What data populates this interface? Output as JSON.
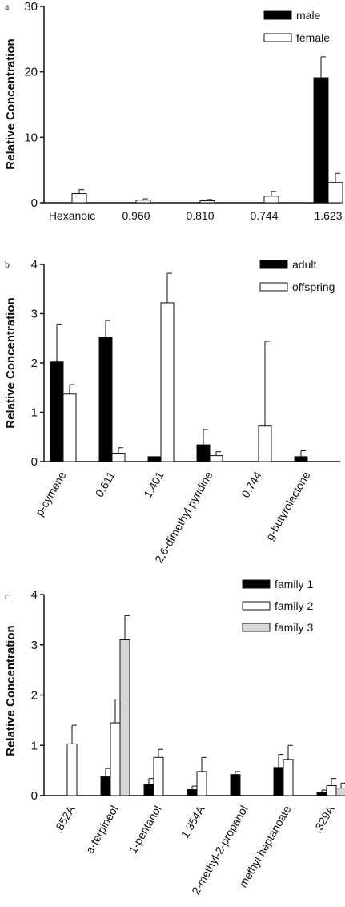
{
  "chart_data": [
    {
      "panel": "a",
      "type": "bar",
      "ylabel": "Relative Concentration",
      "ylim": [
        0,
        30
      ],
      "yticks": [
        0,
        10,
        20,
        30
      ],
      "categories": [
        "Hexanoic",
        "0.960",
        "0.810",
        "0.744",
        "1.623"
      ],
      "series": [
        {
          "name": "male",
          "color": "#000000",
          "values": [
            0,
            0,
            0,
            0,
            19.1
          ],
          "errors": [
            0,
            0,
            0,
            0,
            3.2
          ]
        },
        {
          "name": "female",
          "color": "#ffffff",
          "values": [
            1.4,
            0.4,
            0.3,
            1.0,
            3.1
          ],
          "errors": [
            0.6,
            0.2,
            0.2,
            0.7,
            1.4
          ]
        }
      ],
      "legend": "top-right"
    },
    {
      "panel": "b",
      "type": "bar",
      "ylabel": "Relative Concentration",
      "ylim": [
        0,
        4
      ],
      "yticks": [
        0,
        1,
        2,
        3,
        4
      ],
      "categories": [
        "p-cymene",
        "0.611",
        "1.401",
        "2,6-dimethyl pyridine",
        "0.744",
        "g-butyrolactone"
      ],
      "series": [
        {
          "name": "adult",
          "color": "#000000",
          "values": [
            2.02,
            2.52,
            0.1,
            0.34,
            0,
            0.1
          ],
          "errors": [
            0.77,
            0.34,
            0,
            0.31,
            0,
            0.12
          ]
        },
        {
          "name": "offspring",
          "color": "#ffffff",
          "values": [
            1.37,
            0.17,
            3.22,
            0.12,
            0.72,
            0
          ],
          "errors": [
            0.19,
            0.11,
            0.6,
            0.08,
            1.72,
            0
          ]
        }
      ],
      "legend": "top-right"
    },
    {
      "panel": "c",
      "type": "bar",
      "ylabel": "Relative Concentration",
      "ylim": [
        0,
        4
      ],
      "yticks": [
        0,
        1,
        2,
        3,
        4
      ],
      "categories": [
        ".852A",
        "a-terpineol",
        "1-pentanol",
        "1.354A",
        "2-methyl-2-propanol",
        "methyl heptanoate",
        ".329A"
      ],
      "series": [
        {
          "name": "family 1",
          "color": "#000000",
          "values": [
            0,
            0.38,
            0.22,
            0.12,
            0.42,
            0.56,
            0.07
          ],
          "errors": [
            0,
            0.16,
            0.12,
            0.07,
            0.06,
            0.26,
            0.04
          ]
        },
        {
          "name": "family 2",
          "color": "#ffffff",
          "values": [
            1.03,
            1.45,
            0.76,
            0.48,
            0,
            0.72,
            0.2
          ],
          "errors": [
            0.37,
            0.47,
            0.16,
            0.28,
            0,
            0.28,
            0.14
          ]
        },
        {
          "name": "family 3",
          "color": "#d6d6d6",
          "values": [
            0,
            3.1,
            0,
            0,
            0,
            0,
            0.15
          ],
          "errors": [
            0,
            0.48,
            0,
            0,
            0,
            0,
            0.1
          ]
        }
      ],
      "legend": "top-right"
    }
  ]
}
